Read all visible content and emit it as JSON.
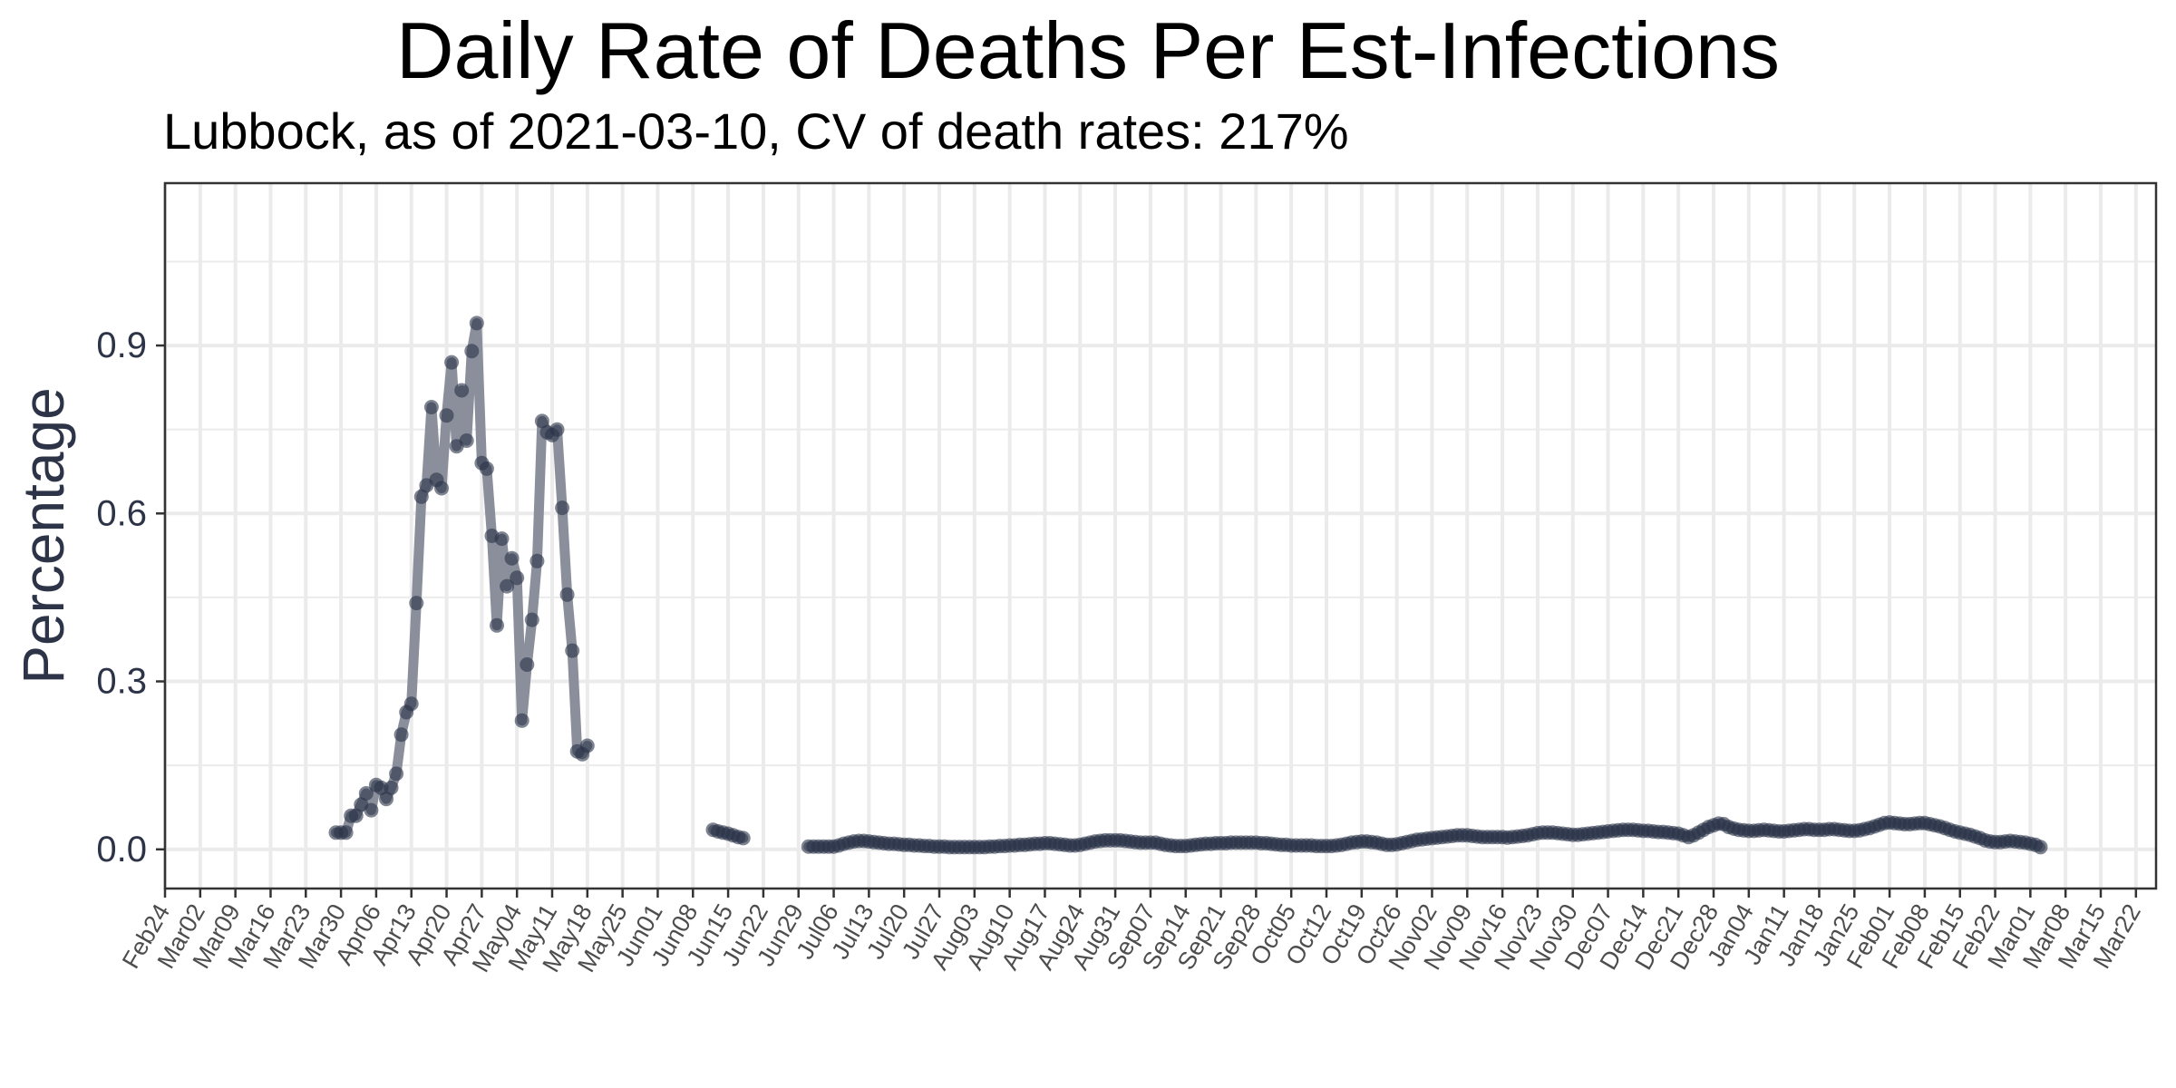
{
  "chart_data": {
    "type": "line",
    "title": "Daily Rate of Deaths Per Est-Infections",
    "subtitle": "Lubbock, as of 2021-03-10, CV of death rates: 217%",
    "xlabel": "",
    "ylabel": "Percentage",
    "xlim": [
      "2020-02-24",
      "2021-03-26"
    ],
    "ylim": [
      -0.07,
      1.19
    ],
    "y_ticks": [
      0.0,
      0.3,
      0.6,
      0.9
    ],
    "y_tick_labels": [
      "0.0",
      "0.3",
      "0.6",
      "0.9"
    ],
    "x_ticks": [
      "2020-02-24",
      "2020-03-02",
      "2020-03-09",
      "2020-03-16",
      "2020-03-23",
      "2020-03-30",
      "2020-04-06",
      "2020-04-13",
      "2020-04-20",
      "2020-04-27",
      "2020-05-04",
      "2020-05-11",
      "2020-05-18",
      "2020-05-25",
      "2020-06-01",
      "2020-06-08",
      "2020-06-15",
      "2020-06-22",
      "2020-06-29",
      "2020-07-06",
      "2020-07-13",
      "2020-07-20",
      "2020-07-27",
      "2020-08-03",
      "2020-08-10",
      "2020-08-17",
      "2020-08-24",
      "2020-08-31",
      "2020-09-07",
      "2020-09-14",
      "2020-09-21",
      "2020-09-28",
      "2020-10-05",
      "2020-10-12",
      "2020-10-19",
      "2020-10-26",
      "2020-11-02",
      "2020-11-09",
      "2020-11-16",
      "2020-11-23",
      "2020-11-30",
      "2020-12-07",
      "2020-12-14",
      "2020-12-21",
      "2020-12-28",
      "2021-01-04",
      "2021-01-11",
      "2021-01-18",
      "2021-01-25",
      "2021-02-01",
      "2021-02-08",
      "2021-02-15",
      "2021-02-22",
      "2021-03-01",
      "2021-03-08",
      "2021-03-15",
      "2021-03-22"
    ],
    "x_tick_labels": [
      "Feb24",
      "Mar02",
      "Mar09",
      "Mar16",
      "Mar23",
      "Mar30",
      "Apr06",
      "Apr13",
      "Apr20",
      "Apr27",
      "May04",
      "May11",
      "May18",
      "May25",
      "Jun01",
      "Jun08",
      "Jun15",
      "Jun22",
      "Jun29",
      "Jul06",
      "Jul13",
      "Jul20",
      "Jul27",
      "Aug03",
      "Aug10",
      "Aug17",
      "Aug24",
      "Aug31",
      "Sep07",
      "Sep14",
      "Sep21",
      "Sep28",
      "Oct05",
      "Oct12",
      "Oct19",
      "Oct26",
      "Nov02",
      "Nov09",
      "Nov16",
      "Nov23",
      "Nov30",
      "Dec07",
      "Dec14",
      "Dec21",
      "Dec28",
      "Jan04",
      "Jan11",
      "Jan18",
      "Jan25",
      "Feb01",
      "Feb08",
      "Feb15",
      "Feb22",
      "Mar01",
      "Mar08",
      "Mar15",
      "Mar22"
    ],
    "grid": true,
    "colors": {
      "line": "#8a8f9b",
      "point": "#2a3248",
      "grid": "#ebebeb",
      "axis_text": "#2e3448",
      "panel_border": "#333333"
    },
    "series": [
      {
        "start": "2020-03-29",
        "values": [
          0.03,
          0.03,
          0.03,
          0.06,
          0.06,
          0.08,
          0.1,
          0.07,
          0.115,
          0.11,
          0.09,
          0.11,
          0.135,
          0.205,
          0.245,
          0.26,
          0.44,
          0.63,
          0.65,
          0.79,
          0.66,
          0.645,
          0.775,
          0.87,
          0.72,
          0.82,
          0.73,
          0.89,
          0.94,
          0.69,
          0.68,
          0.56,
          0.4,
          0.555,
          0.47,
          0.52,
          0.485,
          0.23,
          0.33,
          0.41,
          0.515,
          0.765,
          0.745,
          0.74,
          0.75,
          0.61,
          0.455,
          0.355,
          0.175,
          0.17,
          0.185
        ]
      },
      {
        "start": "2020-06-12",
        "values": [
          0.035,
          0.032,
          0.03,
          0.028,
          0.025,
          0.022,
          0.02
        ]
      },
      {
        "start": "2020-07-01",
        "values": [
          0.005,
          0.005,
          0.005,
          0.005,
          0.005,
          0.005,
          0.007,
          0.01,
          0.012,
          0.014,
          0.015,
          0.015,
          0.014,
          0.013,
          0.012,
          0.011,
          0.01,
          0.01,
          0.009,
          0.008,
          0.008,
          0.007,
          0.007,
          0.006,
          0.006,
          0.005,
          0.005,
          0.005,
          0.004,
          0.004,
          0.004,
          0.004,
          0.004,
          0.004,
          0.004,
          0.004,
          0.005,
          0.005,
          0.006,
          0.006,
          0.007,
          0.007,
          0.008,
          0.008,
          0.009,
          0.01,
          0.01,
          0.011,
          0.011,
          0.01,
          0.009,
          0.008,
          0.007,
          0.007,
          0.008,
          0.01,
          0.012,
          0.014,
          0.015,
          0.016,
          0.016,
          0.016,
          0.016,
          0.015,
          0.014,
          0.013,
          0.012,
          0.012,
          0.012,
          0.012,
          0.01,
          0.008,
          0.007,
          0.006,
          0.006,
          0.006,
          0.007,
          0.008,
          0.009,
          0.01,
          0.01,
          0.011,
          0.011,
          0.011,
          0.012,
          0.012,
          0.012,
          0.012,
          0.012,
          0.012,
          0.011,
          0.011,
          0.01,
          0.009,
          0.008,
          0.008,
          0.007,
          0.007,
          0.007,
          0.007,
          0.007,
          0.006,
          0.006,
          0.006,
          0.006,
          0.007,
          0.008,
          0.01,
          0.012,
          0.013,
          0.014,
          0.014,
          0.013,
          0.012,
          0.01,
          0.008,
          0.008,
          0.009,
          0.011,
          0.013,
          0.015,
          0.017,
          0.018,
          0.019,
          0.02,
          0.021,
          0.022,
          0.023,
          0.024,
          0.025,
          0.025,
          0.025,
          0.024,
          0.023,
          0.022,
          0.022,
          0.022,
          0.022,
          0.022,
          0.021,
          0.022,
          0.023,
          0.024,
          0.025,
          0.027,
          0.029,
          0.03,
          0.03,
          0.03,
          0.029,
          0.028,
          0.027,
          0.026,
          0.026,
          0.027,
          0.028,
          0.029,
          0.03,
          0.031,
          0.032,
          0.033,
          0.034,
          0.035,
          0.035,
          0.035,
          0.034,
          0.033,
          0.033,
          0.032,
          0.031,
          0.031,
          0.03,
          0.029,
          0.028,
          0.025,
          0.022,
          0.025,
          0.03,
          0.035,
          0.04,
          0.043,
          0.046,
          0.045,
          0.04,
          0.037,
          0.035,
          0.034,
          0.033,
          0.033,
          0.034,
          0.035,
          0.034,
          0.033,
          0.032,
          0.032,
          0.033,
          0.034,
          0.035,
          0.036,
          0.036,
          0.035,
          0.035,
          0.035,
          0.036,
          0.036,
          0.035,
          0.034,
          0.033,
          0.033,
          0.034,
          0.036,
          0.038,
          0.041,
          0.044,
          0.047,
          0.048,
          0.047,
          0.046,
          0.045,
          0.045,
          0.046,
          0.047,
          0.047,
          0.045,
          0.043,
          0.041,
          0.038,
          0.035,
          0.032,
          0.03,
          0.028,
          0.026,
          0.023,
          0.02,
          0.016,
          0.014,
          0.013,
          0.013,
          0.014,
          0.015,
          0.014,
          0.013,
          0.012,
          0.01,
          0.008,
          0.004
        ]
      }
    ]
  }
}
